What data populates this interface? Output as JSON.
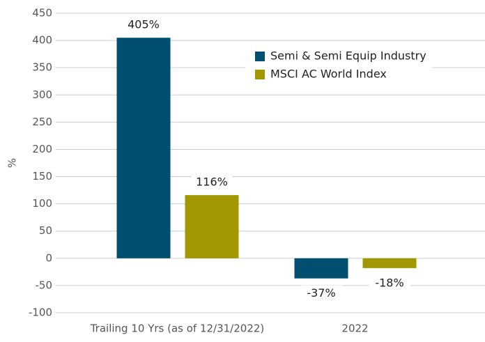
{
  "chart_data": {
    "type": "bar",
    "y_label": "%",
    "categories": [
      "Trailing 10 Yrs (as of 12/31/2022)",
      "2022"
    ],
    "series": [
      {
        "name": "Semi & Semi Equip Industry",
        "color": "#004f71",
        "values": [
          405,
          -37
        ],
        "value_labels": [
          "405%",
          "-37%"
        ]
      },
      {
        "name": "MSCI AC World Index",
        "color": "#a39700",
        "values": [
          116,
          -18
        ],
        "value_labels": [
          "116%",
          "-18%"
        ]
      }
    ],
    "ylim": [
      -100,
      450
    ],
    "yticks": [
      -100,
      -50,
      0,
      50,
      100,
      150,
      200,
      250,
      300,
      350,
      400,
      450
    ],
    "grid": true,
    "legend": "upper right"
  }
}
